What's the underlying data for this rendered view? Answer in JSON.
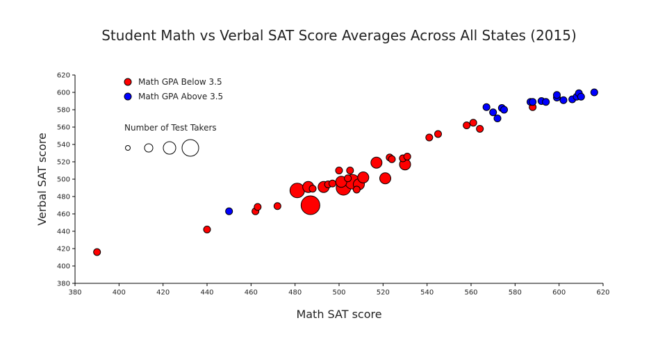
{
  "chart_data": {
    "type": "scatter",
    "title": "Student Math vs Verbal SAT Score Averages Across All States (2015)",
    "xlabel": "Math SAT score",
    "ylabel": "Verbal SAT score",
    "xlim": [
      380,
      620
    ],
    "ylim": [
      380,
      620
    ],
    "xticks": [
      380,
      400,
      420,
      440,
      460,
      480,
      500,
      520,
      540,
      560,
      580,
      600,
      620
    ],
    "yticks": [
      380,
      400,
      420,
      440,
      460,
      480,
      500,
      520,
      540,
      560,
      580,
      600,
      620
    ],
    "grid": false,
    "legend_position": "top-left",
    "size_legend": {
      "title": "Number of Test Takers",
      "sizes": [
        1,
        2,
        3,
        4
      ]
    },
    "series": [
      {
        "name": "Math GPA Below 3.5",
        "color": "#ff0000",
        "points": [
          {
            "x": 390,
            "y": 416,
            "size": 1
          },
          {
            "x": 440,
            "y": 442,
            "size": 1
          },
          {
            "x": 462,
            "y": 463,
            "size": 1
          },
          {
            "x": 463,
            "y": 468,
            "size": 1
          },
          {
            "x": 472,
            "y": 469,
            "size": 1
          },
          {
            "x": 481,
            "y": 487,
            "size": 3
          },
          {
            "x": 486,
            "y": 491,
            "size": 2
          },
          {
            "x": 487,
            "y": 470,
            "size": 4
          },
          {
            "x": 488,
            "y": 489,
            "size": 1
          },
          {
            "x": 493,
            "y": 491,
            "size": 2
          },
          {
            "x": 495,
            "y": 494,
            "size": 1
          },
          {
            "x": 497,
            "y": 495,
            "size": 1
          },
          {
            "x": 500,
            "y": 510,
            "size": 1
          },
          {
            "x": 501,
            "y": 497,
            "size": 2
          },
          {
            "x": 502,
            "y": 490,
            "size": 3
          },
          {
            "x": 504,
            "y": 501,
            "size": 1
          },
          {
            "x": 505,
            "y": 510,
            "size": 1
          },
          {
            "x": 506,
            "y": 497,
            "size": 3
          },
          {
            "x": 508,
            "y": 488,
            "size": 1
          },
          {
            "x": 509,
            "y": 494,
            "size": 2
          },
          {
            "x": 511,
            "y": 502,
            "size": 2
          },
          {
            "x": 517,
            "y": 519,
            "size": 2
          },
          {
            "x": 521,
            "y": 501,
            "size": 2
          },
          {
            "x": 523,
            "y": 525,
            "size": 1
          },
          {
            "x": 524,
            "y": 523,
            "size": 1
          },
          {
            "x": 529,
            "y": 524,
            "size": 1
          },
          {
            "x": 530,
            "y": 517,
            "size": 2
          },
          {
            "x": 531,
            "y": 526,
            "size": 1
          },
          {
            "x": 541,
            "y": 548,
            "size": 1
          },
          {
            "x": 545,
            "y": 552,
            "size": 1
          },
          {
            "x": 558,
            "y": 562,
            "size": 1
          },
          {
            "x": 561,
            "y": 565,
            "size": 1
          },
          {
            "x": 564,
            "y": 558,
            "size": 1
          },
          {
            "x": 588,
            "y": 583,
            "size": 1
          }
        ]
      },
      {
        "name": "Math GPA Above 3.5",
        "color": "#0000ff",
        "points": [
          {
            "x": 450,
            "y": 463,
            "size": 1
          },
          {
            "x": 567,
            "y": 583,
            "size": 1
          },
          {
            "x": 570,
            "y": 577,
            "size": 1
          },
          {
            "x": 572,
            "y": 570,
            "size": 1
          },
          {
            "x": 574,
            "y": 582,
            "size": 1
          },
          {
            "x": 575,
            "y": 580,
            "size": 1
          },
          {
            "x": 587,
            "y": 589,
            "size": 1
          },
          {
            "x": 588,
            "y": 589,
            "size": 1
          },
          {
            "x": 592,
            "y": 590,
            "size": 1
          },
          {
            "x": 594,
            "y": 589,
            "size": 1
          },
          {
            "x": 599,
            "y": 594,
            "size": 1
          },
          {
            "x": 599,
            "y": 597,
            "size": 1
          },
          {
            "x": 602,
            "y": 591,
            "size": 1
          },
          {
            "x": 606,
            "y": 592,
            "size": 1
          },
          {
            "x": 608,
            "y": 595,
            "size": 1
          },
          {
            "x": 609,
            "y": 599,
            "size": 1
          },
          {
            "x": 610,
            "y": 595,
            "size": 1
          },
          {
            "x": 616,
            "y": 600,
            "size": 1
          }
        ]
      }
    ]
  }
}
